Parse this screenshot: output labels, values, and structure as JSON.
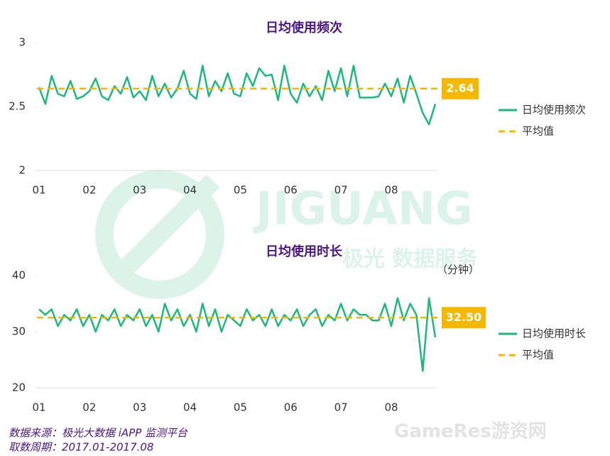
{
  "chart_data": [
    {
      "type": "line",
      "title": "日均使用频次",
      "categories": [
        "01",
        null,
        null,
        null,
        null,
        null,
        null,
        null,
        "02",
        null,
        null,
        null,
        null,
        null,
        null,
        null,
        "03",
        null,
        null,
        null,
        null,
        null,
        null,
        null,
        "04",
        null,
        null,
        null,
        null,
        null,
        null,
        null,
        "05",
        null,
        null,
        null,
        null,
        null,
        null,
        null,
        "06",
        null,
        null,
        null,
        null,
        null,
        null,
        null,
        "07",
        null,
        null,
        null,
        null,
        null,
        null,
        null,
        "08",
        null,
        null,
        null,
        null,
        null,
        null,
        null
      ],
      "series": [
        {
          "name": "日均使用频次",
          "color": "#1db87a",
          "values": [
            2.65,
            2.52,
            2.74,
            2.6,
            2.58,
            2.7,
            2.56,
            2.58,
            2.62,
            2.72,
            2.58,
            2.55,
            2.66,
            2.6,
            2.73,
            2.57,
            2.62,
            2.55,
            2.74,
            2.58,
            2.68,
            2.57,
            2.64,
            2.78,
            2.6,
            2.56,
            2.82,
            2.58,
            2.7,
            2.62,
            2.76,
            2.6,
            2.58,
            2.76,
            2.66,
            2.8,
            2.74,
            2.75,
            2.55,
            2.82,
            2.6,
            2.53,
            2.68,
            2.58,
            2.66,
            2.55,
            2.78,
            2.62,
            2.8,
            2.58,
            2.82,
            2.57,
            2.57,
            2.57,
            2.58,
            2.68,
            2.58,
            2.72,
            2.53,
            2.74,
            2.6,
            2.45,
            2.36,
            2.52
          ]
        }
      ],
      "average": {
        "name": "平均值",
        "value": 2.64,
        "value_label": "2.64",
        "color": "#f5b800"
      },
      "ylim": [
        2,
        3
      ],
      "yticks": [
        2,
        2.5,
        3
      ]
    },
    {
      "type": "line",
      "title": "日均使用时长",
      "unit": "（分钟）",
      "categories": [
        "01",
        null,
        null,
        null,
        null,
        null,
        null,
        null,
        "02",
        null,
        null,
        null,
        null,
        null,
        null,
        null,
        "03",
        null,
        null,
        null,
        null,
        null,
        null,
        null,
        "04",
        null,
        null,
        null,
        null,
        null,
        null,
        null,
        "05",
        null,
        null,
        null,
        null,
        null,
        null,
        null,
        "06",
        null,
        null,
        null,
        null,
        null,
        null,
        null,
        "07",
        null,
        null,
        null,
        null,
        null,
        null,
        null,
        "08",
        null,
        null,
        null,
        null,
        null,
        null,
        null
      ],
      "series": [
        {
          "name": "日均使用时长",
          "color": "#1db87a",
          "values": [
            34,
            33,
            34,
            31,
            33,
            32,
            34,
            31,
            33,
            30,
            33,
            32,
            34,
            31,
            33,
            32,
            34,
            31,
            33,
            30,
            35,
            32,
            34,
            31,
            33,
            30,
            35,
            31,
            34,
            30,
            33,
            32,
            31,
            34,
            32,
            33,
            31,
            34,
            31,
            33,
            32,
            34,
            31,
            33,
            34,
            31,
            33,
            32,
            35,
            32,
            34,
            33,
            33,
            32,
            32,
            35,
            31,
            36,
            32,
            35,
            33,
            23,
            36,
            29
          ]
        }
      ],
      "average": {
        "name": "平均值",
        "value": 32.5,
        "value_label": "32.50",
        "color": "#f5b800"
      },
      "ylim": [
        20,
        40
      ],
      "yticks": [
        20,
        30,
        40
      ]
    }
  ],
  "watermark": {
    "brand": "JIGUANG",
    "slogan": "极光 数据服务",
    "site": "GameRes游资网"
  },
  "source": "数据来源：极光大数据 iAPP 监测平台",
  "period": "取数周期：2017.01-2017.08"
}
